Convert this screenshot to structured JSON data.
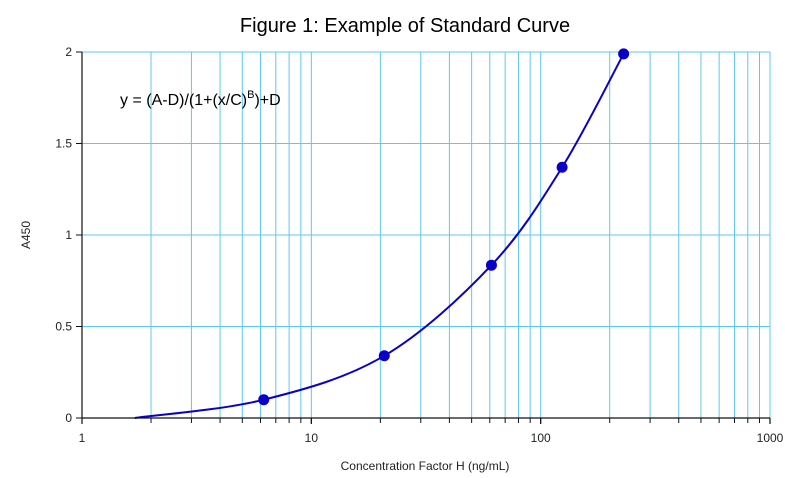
{
  "chart_data": {
    "type": "scatter",
    "title": "Figure 1: Example of Standard Curve",
    "xlabel": "Concentration Factor H (ng/mL)",
    "ylabel": "A450",
    "x_scale": "log",
    "xlim": [
      1,
      1000
    ],
    "ylim": [
      0,
      2
    ],
    "x_ticks": [
      "1",
      "10",
      "100",
      "1000"
    ],
    "y_ticks": [
      "0",
      "0.5",
      "1",
      "1.5",
      "2"
    ],
    "grid": true,
    "annotation": {
      "base": "y = (A-D)/(1+(x/C)",
      "sup": "B",
      "tail": ")+D"
    },
    "series": [
      {
        "points": [
          {
            "x": 6.2,
            "y": 0.1
          },
          {
            "x": 20.8,
            "y": 0.34
          },
          {
            "x": 61,
            "y": 0.835
          },
          {
            "x": 124,
            "y": 1.37
          },
          {
            "x": 230,
            "y": 1.99
          }
        ],
        "fit": {
          "x_start": 1.7,
          "x_end": 230
        },
        "color": "#0a00c8"
      }
    ],
    "colors": {
      "grid": "#5fc8ef",
      "axis": "#111111",
      "series": "#0a00c8"
    }
  }
}
